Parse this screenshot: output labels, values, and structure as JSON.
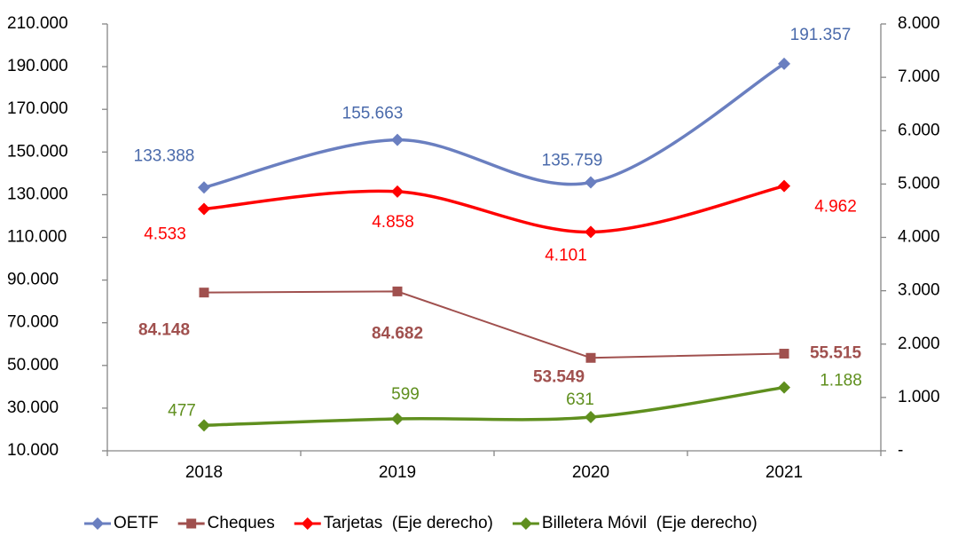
{
  "chart_data": {
    "type": "line",
    "categories": [
      "2018",
      "2019",
      "2020",
      "2021"
    ],
    "ylim": [
      10000,
      210000
    ],
    "yticks": [
      {
        "value": 10000,
        "label": "10.000"
      },
      {
        "value": 30000,
        "label": "30.000"
      },
      {
        "value": 50000,
        "label": "50.000"
      },
      {
        "value": 70000,
        "label": "70.000"
      },
      {
        "value": 90000,
        "label": "90.000"
      },
      {
        "value": 110000,
        "label": "110.000"
      },
      {
        "value": 130000,
        "label": "130.000"
      },
      {
        "value": 150000,
        "label": "150.000"
      },
      {
        "value": 170000,
        "label": "170.000"
      },
      {
        "value": 190000,
        "label": "190.000"
      },
      {
        "value": 210000,
        "label": "210.000"
      }
    ],
    "y2lim": [
      0,
      8000
    ],
    "y2ticks": [
      {
        "value": 0,
        "label": "-"
      },
      {
        "value": 1000,
        "label": "1.000"
      },
      {
        "value": 2000,
        "label": "2.000"
      },
      {
        "value": 3000,
        "label": "3.000"
      },
      {
        "value": 4000,
        "label": "4.000"
      },
      {
        "value": 5000,
        "label": "5.000"
      },
      {
        "value": 6000,
        "label": "6.000"
      },
      {
        "value": 7000,
        "label": "7.000"
      },
      {
        "value": 8000,
        "label": "8.000"
      }
    ],
    "legend": "bottom",
    "series": [
      {
        "name": "OETF",
        "color": "#6a7fc0",
        "label_color": "#4a6aab",
        "marker": "diamond",
        "smooth": true,
        "values": [
          133388,
          155663,
          135759,
          191357
        ],
        "value_labels": [
          "133.388",
          "155.663",
          "135.759",
          "191.357"
        ]
      },
      {
        "name": "Cheques",
        "color": "#a0504e",
        "label_color": "#a0504e",
        "marker": "square",
        "smooth": false,
        "values": [
          84148,
          84682,
          53549,
          55515
        ],
        "value_labels": [
          "84.148",
          "84.682",
          "53.549",
          "55.515"
        ]
      },
      {
        "name": "Tarjetas  (Eje derecho)",
        "color": "#ff0000",
        "label_color": "#ff0000",
        "marker": "diamond",
        "smooth": true,
        "axis": "y2",
        "values": [
          4533,
          4858,
          4101,
          4962
        ],
        "value_labels": [
          "4.533",
          "4.858",
          "4.101",
          "4.962"
        ]
      },
      {
        "name": "Billetera Móvil  (Eje derecho)",
        "color": "#5f8f1e",
        "label_color": "#5f8f1e",
        "marker": "diamond",
        "smooth": true,
        "axis": "y2",
        "values": [
          477,
          599,
          631,
          1188
        ],
        "value_labels": [
          "477",
          "599",
          "631",
          "1.188"
        ]
      }
    ]
  }
}
